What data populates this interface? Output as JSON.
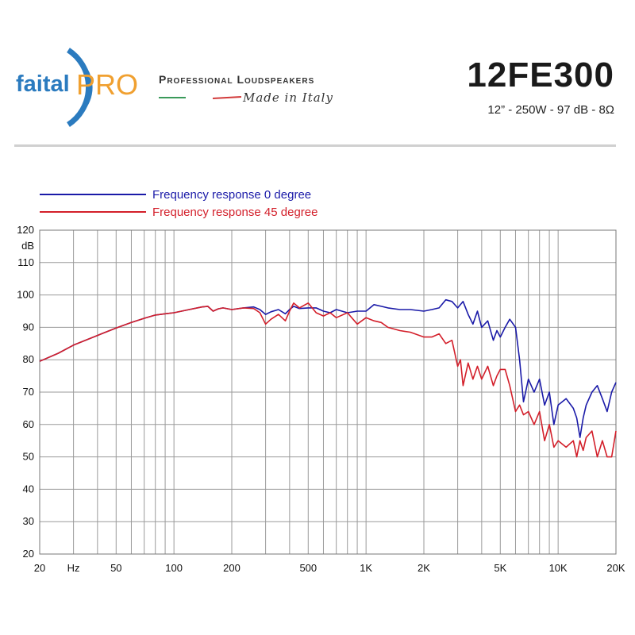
{
  "header": {
    "brand_name": "faital PRO",
    "tagline": "Professional Loudspeakers",
    "made_in": "Made in Italy",
    "model": "12FE300",
    "spec": "12” - 250W - 97 dB - 8Ω"
  },
  "colors": {
    "series_0": "#1a1aa8",
    "series_45": "#d31f2a",
    "logo_blue": "#2b7bbf",
    "logo_orange": "#f0a030"
  },
  "chart_data": {
    "type": "line",
    "title": "",
    "xlabel": "Hz",
    "ylabel": "dB",
    "xscale": "log",
    "xlim": [
      20,
      20000
    ],
    "ylim": [
      20,
      120
    ],
    "grid": true,
    "legend_position": "top-left",
    "x_ticks": [
      {
        "value": 20,
        "label": "20"
      },
      {
        "value": 30,
        "label": "Hz"
      },
      {
        "value": 50,
        "label": "50"
      },
      {
        "value": 100,
        "label": "100"
      },
      {
        "value": 200,
        "label": "200"
      },
      {
        "value": 500,
        "label": "500"
      },
      {
        "value": 1000,
        "label": "1K"
      },
      {
        "value": 2000,
        "label": "2K"
      },
      {
        "value": 5000,
        "label": "5K"
      },
      {
        "value": 10000,
        "label": "10K"
      },
      {
        "value": 20000,
        "label": "20K"
      }
    ],
    "y_ticks": [
      20,
      30,
      40,
      50,
      60,
      70,
      80,
      90,
      100,
      110,
      120
    ],
    "series": [
      {
        "name": "Frequency response 0 degree",
        "x": [
          20,
          25,
          30,
          40,
          50,
          60,
          70,
          80,
          90,
          100,
          120,
          140,
          150,
          160,
          170,
          180,
          200,
          230,
          260,
          280,
          300,
          320,
          350,
          380,
          400,
          420,
          450,
          500,
          550,
          600,
          650,
          700,
          800,
          900,
          1000,
          1100,
          1200,
          1300,
          1500,
          1700,
          2000,
          2200,
          2400,
          2600,
          2800,
          3000,
          3200,
          3400,
          3600,
          3800,
          4000,
          4300,
          4600,
          4800,
          5000,
          5300,
          5600,
          6000,
          6300,
          6600,
          7000,
          7500,
          8000,
          8500,
          9000,
          9500,
          10000,
          11000,
          12000,
          12500,
          13000,
          13500,
          14000,
          15000,
          16000,
          17000,
          18000,
          19000,
          20000
        ],
        "y": [
          79.5,
          82,
          84.5,
          87.5,
          89.8,
          91.5,
          92.8,
          93.8,
          94.2,
          94.5,
          95.5,
          96.3,
          96.5,
          95,
          95.7,
          96,
          95.5,
          96,
          96.3,
          95.5,
          94,
          94.8,
          95.5,
          94.2,
          95.5,
          96.5,
          95.8,
          96,
          96,
          95,
          94.5,
          95.5,
          94.5,
          95,
          95,
          97,
          96.5,
          96,
          95.5,
          95.5,
          95,
          95.5,
          96,
          98.5,
          98,
          96,
          98,
          94,
          91,
          95,
          90,
          92,
          86,
          89,
          87,
          90,
          92.5,
          90,
          80,
          67,
          74,
          70,
          74,
          66,
          70,
          60,
          66,
          68,
          65,
          62,
          56,
          62,
          66,
          70,
          72,
          68,
          64,
          70,
          73
        ]
      },
      {
        "name": "Frequency response 45 degree",
        "x": [
          20,
          25,
          30,
          40,
          50,
          60,
          70,
          80,
          90,
          100,
          120,
          140,
          150,
          160,
          170,
          180,
          200,
          230,
          260,
          280,
          300,
          320,
          350,
          380,
          400,
          420,
          450,
          500,
          550,
          600,
          650,
          700,
          800,
          900,
          1000,
          1100,
          1200,
          1300,
          1500,
          1700,
          2000,
          2200,
          2400,
          2600,
          2800,
          3000,
          3100,
          3200,
          3400,
          3600,
          3800,
          4000,
          4300,
          4600,
          4800,
          5000,
          5300,
          5600,
          6000,
          6300,
          6600,
          7000,
          7500,
          8000,
          8500,
          9000,
          9500,
          10000,
          11000,
          12000,
          12500,
          13000,
          13500,
          14000,
          15000,
          16000,
          17000,
          18000,
          19000,
          20000
        ],
        "y": [
          79.5,
          82,
          84.5,
          87.5,
          89.8,
          91.5,
          92.8,
          93.8,
          94.2,
          94.5,
          95.5,
          96.3,
          96.5,
          95,
          95.7,
          96,
          95.5,
          96,
          95.8,
          94.5,
          91,
          92.5,
          94,
          92,
          95,
          97.5,
          96,
          97.5,
          94.5,
          93.5,
          94.5,
          93,
          94.5,
          91,
          93,
          92,
          91.5,
          90,
          89,
          88.5,
          87,
          87,
          88,
          85,
          86,
          78,
          80,
          72,
          79,
          74,
          78,
          74,
          78,
          72,
          75,
          77,
          77,
          72,
          64,
          66,
          63,
          64,
          60,
          64,
          55,
          60,
          53,
          55,
          53,
          55,
          50,
          55,
          52,
          56,
          58,
          50,
          55,
          50,
          50,
          58
        ]
      }
    ]
  }
}
